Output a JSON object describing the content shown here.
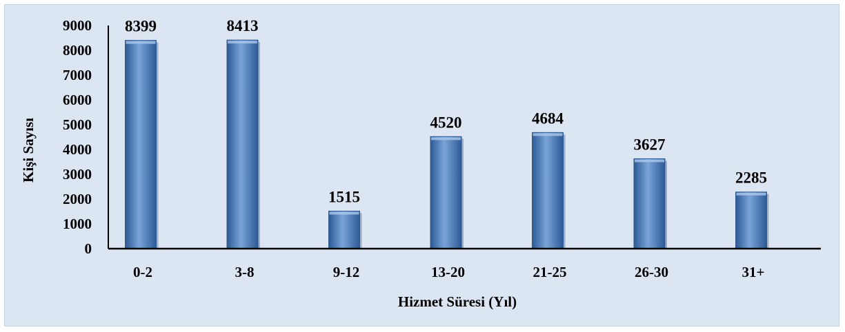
{
  "chart_data": {
    "type": "bar",
    "categories": [
      "0-2",
      "3-8",
      "9-12",
      "13-20",
      "21-25",
      "26-30",
      "31+"
    ],
    "values": [
      8399,
      8413,
      1515,
      4520,
      4684,
      3627,
      2285
    ],
    "data_labels": [
      "8399",
      "8413",
      "1515",
      "4520",
      "4684",
      "3627",
      "2285"
    ],
    "title": "",
    "xlabel": "Hizmet Süresi (Yıl)",
    "ylabel": "Kişi Sayısı",
    "ylim": [
      0,
      9000
    ],
    "yticks": [
      "0",
      "1000",
      "2000",
      "3000",
      "4000",
      "5000",
      "6000",
      "7000",
      "8000",
      "9000"
    ],
    "grid": false,
    "legend": "none",
    "colors": {
      "bar": "#4f81bd",
      "bar_dark": "#2c5a96",
      "bar_light": "#7aa4d8",
      "background": "#dce6f2"
    }
  }
}
